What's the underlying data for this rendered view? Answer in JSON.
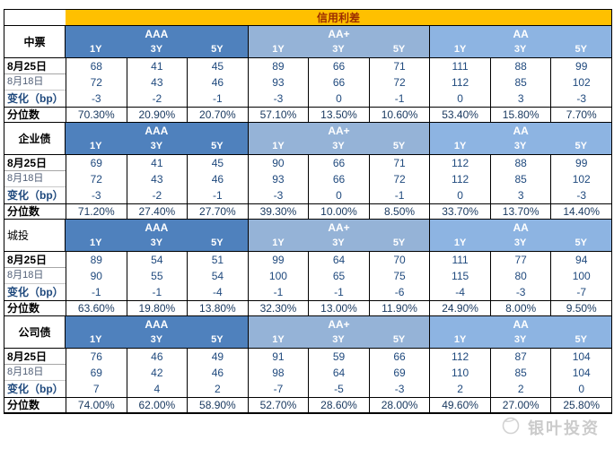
{
  "colors": {
    "header_bg": "#ffc000",
    "header_text": "#9c2d00",
    "rating_bg": {
      "AAA": "#4f81bd",
      "AA+": "#95b3d7",
      "AA": "#8db4e2"
    },
    "value_text": "#1f497d",
    "percent_text": "#17375e"
  },
  "chart_data": {
    "type": "table",
    "title": "信用利差",
    "column_groups": [
      "AAA",
      "AA+",
      "AA"
    ],
    "tenors": [
      "1Y",
      "3Y",
      "5Y"
    ],
    "row_labels": [
      "8月25日",
      "8月18日",
      "变化（bp）",
      "分位数"
    ],
    "sections": [
      {
        "name": "中票",
        "name_bold": true,
        "name_align": "center",
        "rows": [
          [
            "68",
            "41",
            "45",
            "89",
            "66",
            "71",
            "111",
            "88",
            "99"
          ],
          [
            "72",
            "43",
            "46",
            "93",
            "66",
            "72",
            "112",
            "85",
            "102"
          ],
          [
            "-3",
            "-2",
            "-1",
            "-3",
            "0",
            "-1",
            "0",
            "3",
            "-3"
          ],
          [
            "70.30%",
            "20.90%",
            "20.70%",
            "57.10%",
            "13.50%",
            "10.60%",
            "53.40%",
            "15.80%",
            "7.70%"
          ]
        ]
      },
      {
        "name": "企业债",
        "name_bold": true,
        "name_align": "center",
        "rows": [
          [
            "69",
            "41",
            "45",
            "90",
            "66",
            "71",
            "112",
            "88",
            "99"
          ],
          [
            "72",
            "43",
            "46",
            "93",
            "66",
            "72",
            "112",
            "85",
            "102"
          ],
          [
            "-3",
            "-2",
            "-1",
            "-3",
            "0",
            "-1",
            "0",
            "3",
            "-3"
          ],
          [
            "71.20%",
            "27.40%",
            "27.70%",
            "39.30%",
            "10.00%",
            "8.50%",
            "33.70%",
            "13.70%",
            "14.40%"
          ]
        ]
      },
      {
        "name": "城投",
        "name_bold": false,
        "name_align": "left",
        "rows": [
          [
            "89",
            "54",
            "51",
            "99",
            "64",
            "70",
            "111",
            "77",
            "94"
          ],
          [
            "90",
            "55",
            "54",
            "100",
            "65",
            "75",
            "115",
            "80",
            "100"
          ],
          [
            "-1",
            "-1",
            "-4",
            "-1",
            "-1",
            "-6",
            "-4",
            "-3",
            "-7"
          ],
          [
            "63.60%",
            "19.80%",
            "13.80%",
            "32.30%",
            "13.00%",
            "11.90%",
            "24.90%",
            "8.00%",
            "9.50%"
          ]
        ]
      },
      {
        "name": "公司债",
        "name_bold": true,
        "name_align": "center",
        "rows": [
          [
            "76",
            "46",
            "49",
            "91",
            "59",
            "66",
            "112",
            "87",
            "104"
          ],
          [
            "69",
            "42",
            "46",
            "98",
            "64",
            "69",
            "110",
            "85",
            "104"
          ],
          [
            "7",
            "4",
            "2",
            "-7",
            "-5",
            "-3",
            "2",
            "2",
            "0"
          ],
          [
            "74.00%",
            "62.00%",
            "58.90%",
            "52.70%",
            "28.60%",
            "28.00%",
            "49.60%",
            "27.00%",
            "25.80%"
          ]
        ]
      }
    ]
  },
  "watermark": {
    "text": "银叶投资"
  }
}
